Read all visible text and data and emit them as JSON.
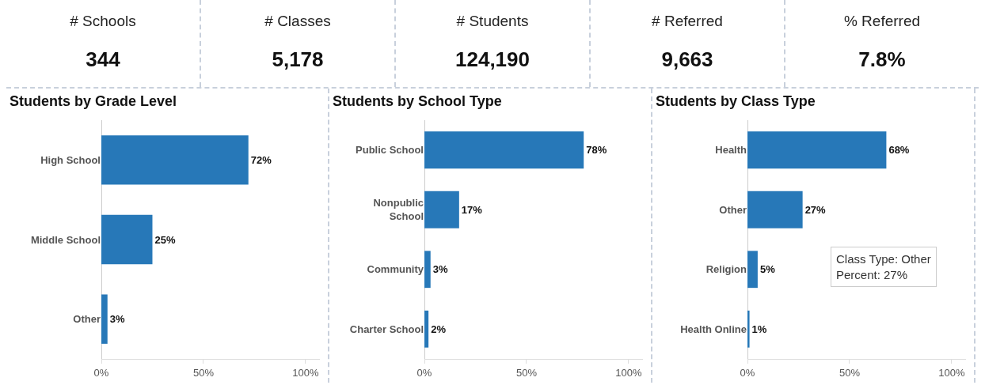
{
  "chart_data": [
    {
      "type": "other",
      "categories": [
        "# Schools",
        "# Classes",
        "# Students",
        "# Referred",
        "% Referred"
      ],
      "value_labels": [
        "344",
        "5,178",
        "124,190",
        "9,663",
        "7.8%"
      ]
    },
    {
      "type": "bar",
      "orientation": "horizontal",
      "title": "Students by Grade Level",
      "categories": [
        "High School",
        "Middle School",
        "Other"
      ],
      "values": [
        72,
        25,
        3
      ],
      "value_labels": [
        "72%",
        "25%",
        "3%"
      ],
      "color": "#2778b8",
      "xlim": [
        0,
        107
      ],
      "xticks": [
        {
          "value": 0,
          "label": "0%"
        },
        {
          "value": 50,
          "label": "50%"
        },
        {
          "value": 100,
          "label": "100%"
        }
      ],
      "grid": false
    },
    {
      "type": "bar",
      "orientation": "horizontal",
      "title": "Students by School Type",
      "categories": [
        "Public School",
        "Nonpublic\nSchool",
        "Community",
        "Charter School"
      ],
      "values": [
        78,
        17,
        3,
        2
      ],
      "value_labels": [
        "78%",
        "17%",
        "3%",
        "2%"
      ],
      "color": "#2778b8",
      "xlim": [
        0,
        107
      ],
      "xticks": [
        {
          "value": 0,
          "label": "0%"
        },
        {
          "value": 50,
          "label": "50%"
        },
        {
          "value": 100,
          "label": "100%"
        }
      ],
      "grid": false
    },
    {
      "type": "bar",
      "orientation": "horizontal",
      "title": "Students by Class Type",
      "categories": [
        "Health",
        "Other",
        "Religion",
        "Health Online"
      ],
      "values": [
        68,
        27,
        5,
        1
      ],
      "value_labels": [
        "68%",
        "27%",
        "5%",
        "1%"
      ],
      "color": "#2778b8",
      "xlim": [
        0,
        107
      ],
      "xticks": [
        {
          "value": 0,
          "label": "0%"
        },
        {
          "value": 50,
          "label": "50%"
        },
        {
          "value": 100,
          "label": "100%"
        }
      ],
      "grid": false,
      "annotations": [
        "Class Type: Other",
        "Percent: 27%"
      ]
    }
  ]
}
